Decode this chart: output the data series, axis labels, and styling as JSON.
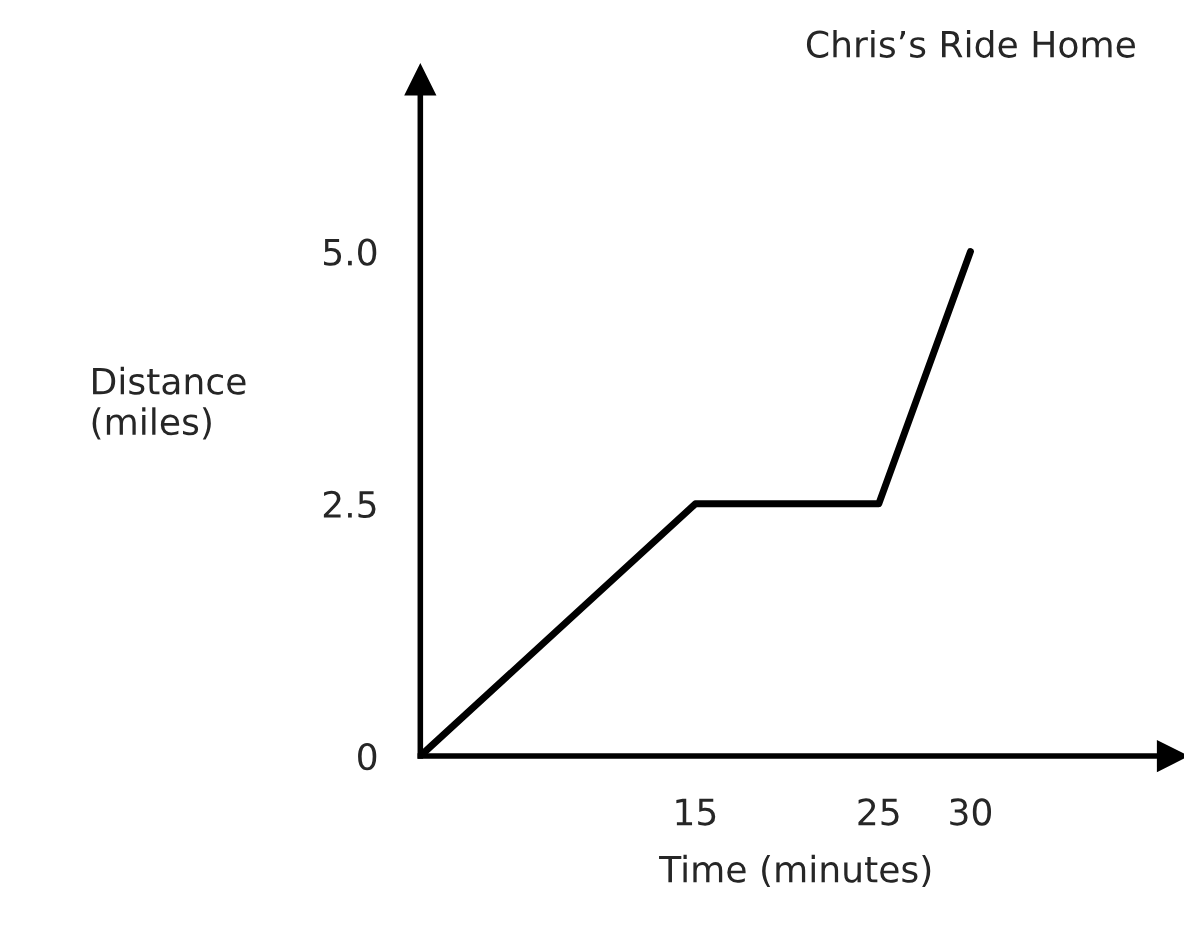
{
  "chart_data": {
    "type": "line",
    "title": "Chris’s Ride Home",
    "xlabel": "Time (minutes)",
    "ylabel": "Distance\n(miles)",
    "x": [
      0,
      15,
      25,
      30
    ],
    "series": [
      {
        "color": "#000000",
        "values": [
          0,
          2.5,
          2.5,
          5
        ]
      }
    ],
    "xlim": [
      0,
      41
    ],
    "ylim": [
      0,
      6.7
    ],
    "xticks": [
      15,
      25,
      30
    ],
    "yticks": [
      0,
      2.5,
      {
        "value": 5,
        "label": "5.0"
      }
    ],
    "grid": false,
    "marker": "none",
    "line_style": "solid",
    "legend": false
  }
}
